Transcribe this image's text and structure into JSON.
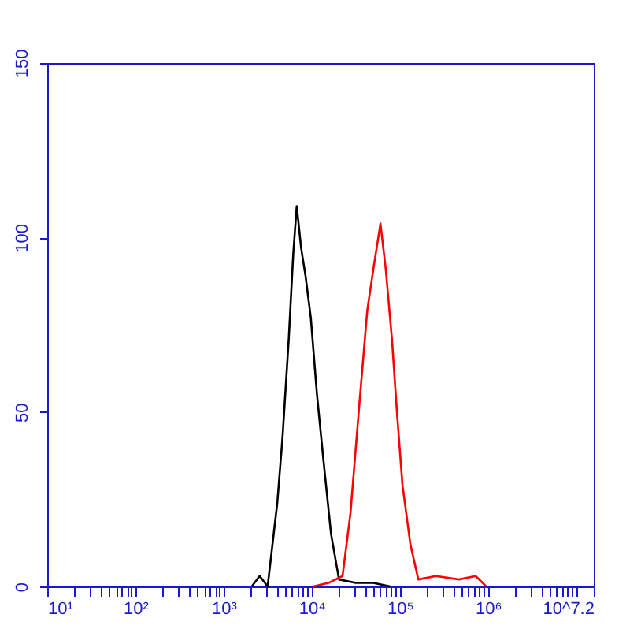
{
  "chart_data": {
    "type": "line",
    "log": "x",
    "xlim": [
      10,
      15848932
    ],
    "ylim": [
      0,
      150
    ],
    "yticks": [
      0,
      50,
      100,
      150
    ],
    "xticks": [
      {
        "value": 10,
        "label": "10¹"
      },
      {
        "value": 20,
        "label": null
      },
      {
        "value": 30,
        "label": null
      },
      {
        "value": 40,
        "label": null
      },
      {
        "value": 50,
        "label": null
      },
      {
        "value": 60,
        "label": null
      },
      {
        "value": 70,
        "label": null
      },
      {
        "value": 80,
        "label": null
      },
      {
        "value": 90,
        "label": null
      },
      {
        "value": 100,
        "label": "10²"
      },
      {
        "value": 200,
        "label": null
      },
      {
        "value": 300,
        "label": null
      },
      {
        "value": 400,
        "label": null
      },
      {
        "value": 500,
        "label": null
      },
      {
        "value": 600,
        "label": null
      },
      {
        "value": 700,
        "label": null
      },
      {
        "value": 800,
        "label": null
      },
      {
        "value": 900,
        "label": null
      },
      {
        "value": 1000,
        "label": "10³"
      },
      {
        "value": 2000,
        "label": null
      },
      {
        "value": 3000,
        "label": null
      },
      {
        "value": 4000,
        "label": null
      },
      {
        "value": 5000,
        "label": null
      },
      {
        "value": 6000,
        "label": null
      },
      {
        "value": 7000,
        "label": null
      },
      {
        "value": 8000,
        "label": null
      },
      {
        "value": 9000,
        "label": null
      },
      {
        "value": 10000,
        "label": "10⁴"
      },
      {
        "value": 20000,
        "label": null
      },
      {
        "value": 30000,
        "label": null
      },
      {
        "value": 40000,
        "label": null
      },
      {
        "value": 50000,
        "label": null
      },
      {
        "value": 60000,
        "label": null
      },
      {
        "value": 70000,
        "label": null
      },
      {
        "value": 80000,
        "label": null
      },
      {
        "value": 90000,
        "label": null
      },
      {
        "value": 100000,
        "label": "10⁵"
      },
      {
        "value": 200000,
        "label": null
      },
      {
        "value": 300000,
        "label": null
      },
      {
        "value": 400000,
        "label": null
      },
      {
        "value": 500000,
        "label": null
      },
      {
        "value": 600000,
        "label": null
      },
      {
        "value": 700000,
        "label": null
      },
      {
        "value": 800000,
        "label": null
      },
      {
        "value": 900000,
        "label": null
      },
      {
        "value": 1000000,
        "label": "10⁶"
      },
      {
        "value": 2000000,
        "label": null
      },
      {
        "value": 3000000,
        "label": null
      },
      {
        "value": 4000000,
        "label": null
      },
      {
        "value": 5000000,
        "label": null
      },
      {
        "value": 6000000,
        "label": null
      },
      {
        "value": 7000000,
        "label": null
      },
      {
        "value": 8000000,
        "label": null
      },
      {
        "value": 9000000,
        "label": null
      },
      {
        "value": 10000000,
        "label": null
      },
      {
        "value": 15848932,
        "label": "10^7.2"
      }
    ],
    "series": [
      {
        "color": "#000000",
        "x": [
          2089,
          2570,
          3162,
          4074,
          4677,
          5495,
          6166,
          6761,
          7586,
          8511,
          9772,
          11482,
          13490,
          16596,
          20417,
          31623,
          50119,
          77625
        ],
        "values": [
          0,
          3,
          0,
          24,
          43,
          71,
          95,
          109,
          97,
          89,
          77,
          55,
          37,
          15,
          2,
          1,
          1,
          0
        ]
      },
      {
        "color": "#ff0000",
        "x": [
          10471,
          15488,
          22387,
          27542,
          34674,
          42658,
          50119,
          60256,
          69183,
          81283,
          93325,
          107152,
          131826,
          162181,
          257040,
          467735,
          724436,
          954993
        ],
        "values": [
          0,
          1,
          3,
          21,
          52,
          79,
          91,
          104,
          91,
          71,
          49,
          29,
          12,
          2,
          3,
          2,
          3,
          0
        ]
      }
    ]
  }
}
